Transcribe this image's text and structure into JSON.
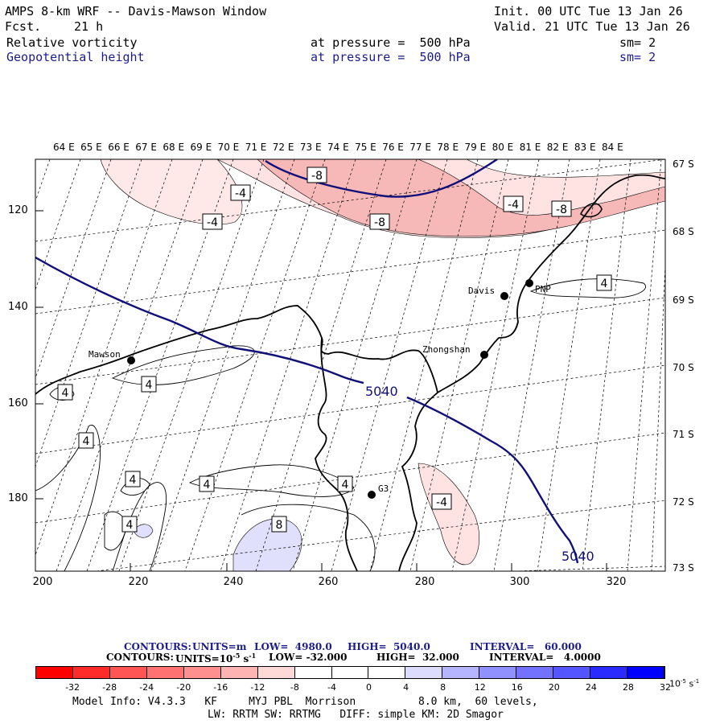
{
  "header": {
    "title": "AMPS 8-km WRF -- Davis-Mawson Window",
    "fcst_label": "Fcst.",
    "fcst_value": "21 h",
    "init": "Init. 00 UTC Tue 13 Jan 26",
    "valid": "Valid. 21 UTC Tue 13 Jan 26",
    "field1": {
      "name": "Relative vorticity",
      "level": "at pressure =  500 hPa",
      "sm": "sm= 2"
    },
    "field2": {
      "name": "Geopotential height",
      "level": "at pressure =  500 hPa",
      "sm": "sm= 2"
    }
  },
  "map": {
    "lon_labels": [
      "64 E",
      "65 E",
      "66 E",
      "67 E",
      "68 E",
      "69 E",
      "70 E",
      "71 E",
      "72 E",
      "73 E",
      "74 E",
      "75 E",
      "76 E",
      "77 E",
      "78 E",
      "79 E",
      "80 E",
      "81 E",
      "82 E",
      "83 E",
      "84 E"
    ],
    "lat_labels": [
      "67 S",
      "68 S",
      "69 S",
      "70 S",
      "71 S",
      "72 S",
      "73 S"
    ],
    "x_ticks": [
      "200",
      "220",
      "240",
      "260",
      "280",
      "300",
      "320"
    ],
    "y_ticks": [
      "120",
      "140",
      "160",
      "180"
    ],
    "stations": [
      {
        "name": "Mawson",
        "symbol": "station-dot"
      },
      {
        "name": "Davis",
        "symbol": "station-dot"
      },
      {
        "name": "Zhongshan",
        "symbol": "station-dot"
      },
      {
        "name": "PNP",
        "symbol": "station-dot"
      },
      {
        "name": "G3",
        "symbol": "station-dot"
      }
    ],
    "height_labels": [
      "5040",
      "5040"
    ],
    "vort_labels": [
      "-8",
      "-4",
      "-4",
      "-8",
      "-4",
      "-8",
      "4",
      "4",
      "4",
      "4",
      "4",
      "4",
      "4",
      "4",
      "-4",
      "8"
    ],
    "colors": {
      "height_contour": "#101078",
      "coast": "#000000",
      "neg_fill": "#f8b8b8",
      "pos_fill": "#dcdcf8"
    }
  },
  "contours_info": {
    "line1": {
      "label": "CONTOURS:",
      "units": "UNITS=m",
      "low": "LOW=  4980.0",
      "high": "HIGH=  5040.0",
      "interval": "INTERVAL=   60.000"
    },
    "line2": {
      "label": "CONTOURS:",
      "units": "UNITS=10",
      "units_exp": "-5",
      "units_suffix": "s",
      "units_suffix_exp": "-1",
      "low": "LOW= -32.000",
      "high": "HIGH=  32.000",
      "interval": "INTERVAL=   4.0000"
    }
  },
  "colorbar": {
    "colors": [
      "#ff0000",
      "#ff2a2a",
      "#ff5555",
      "#ff7272",
      "#ff9090",
      "#ffb4b4",
      "#ffd8d8",
      "#ffffff",
      "#ffffff",
      "#ffffff",
      "#dcdcff",
      "#b4b4ff",
      "#9090ff",
      "#7272ff",
      "#5555ff",
      "#2a2aff",
      "#0000ff"
    ],
    "labels": [
      "-32",
      "-28",
      "-24",
      "-20",
      "-16",
      "-12",
      "-8",
      "-4",
      "0",
      "4",
      "8",
      "12",
      "16",
      "20",
      "24",
      "28",
      "32"
    ],
    "unit": "10",
    "unit_exp": "-5",
    "unit_suffix": "s",
    "unit_suffix_exp": "-1"
  },
  "footer": {
    "model_info": "Model Info: V4.3.3   KF     MYJ PBL  Morrison",
    "resolution": "8.0 km,  60 levels,",
    "physics": "LW: RRTM SW: RRTMG   DIFF: simple KM: 2D Smagor"
  }
}
